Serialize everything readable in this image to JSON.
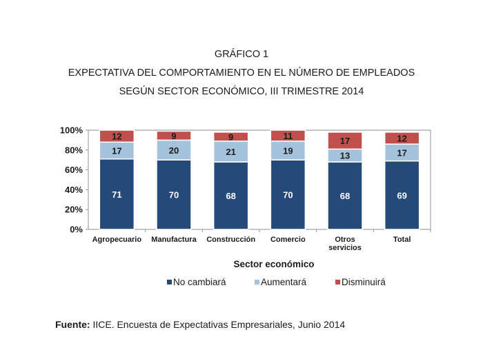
{
  "header": {
    "title_line1": "GRÁFICO 1",
    "title_line2": "EXPECTATIVA DEL COMPORTAMIENTO EN EL NÚMERO DE EMPLEADOS",
    "title_line3": "SEGÚN SECTOR ECONÓMICO, III TRIMESTRE 2014"
  },
  "footer": {
    "source_label": "Fuente:",
    "source_text": " IICE. Encuesta de Expectativas Empresariales, Junio 2014"
  },
  "chart_data": {
    "type": "bar",
    "stacked": true,
    "categories": [
      "Agropecuario",
      "Manufactura",
      "Construcción",
      "Comercio",
      "Otros servicios",
      "Total"
    ],
    "series": [
      {
        "name": "No cambiará",
        "values": [
          71,
          70,
          68,
          70,
          68,
          69
        ],
        "color": "#254a7a",
        "label_color": "#ffffff"
      },
      {
        "name": "Aumentará",
        "values": [
          17,
          20,
          21,
          19,
          13,
          17
        ],
        "color": "#a4c2dc",
        "label_color": "#1a1a1a"
      },
      {
        "name": "Disminuirá",
        "values": [
          12,
          9,
          9,
          11,
          17,
          12
        ],
        "color": "#c0504d",
        "label_color": "#1a1a1a"
      }
    ],
    "xlabel": "Sector económico",
    "ylabel": "",
    "ylim": [
      0,
      100
    ],
    "yticks": [
      "0%",
      "20%",
      "40%",
      "60%",
      "80%",
      "100%"
    ],
    "grid": false,
    "legend_position": "bottom"
  }
}
